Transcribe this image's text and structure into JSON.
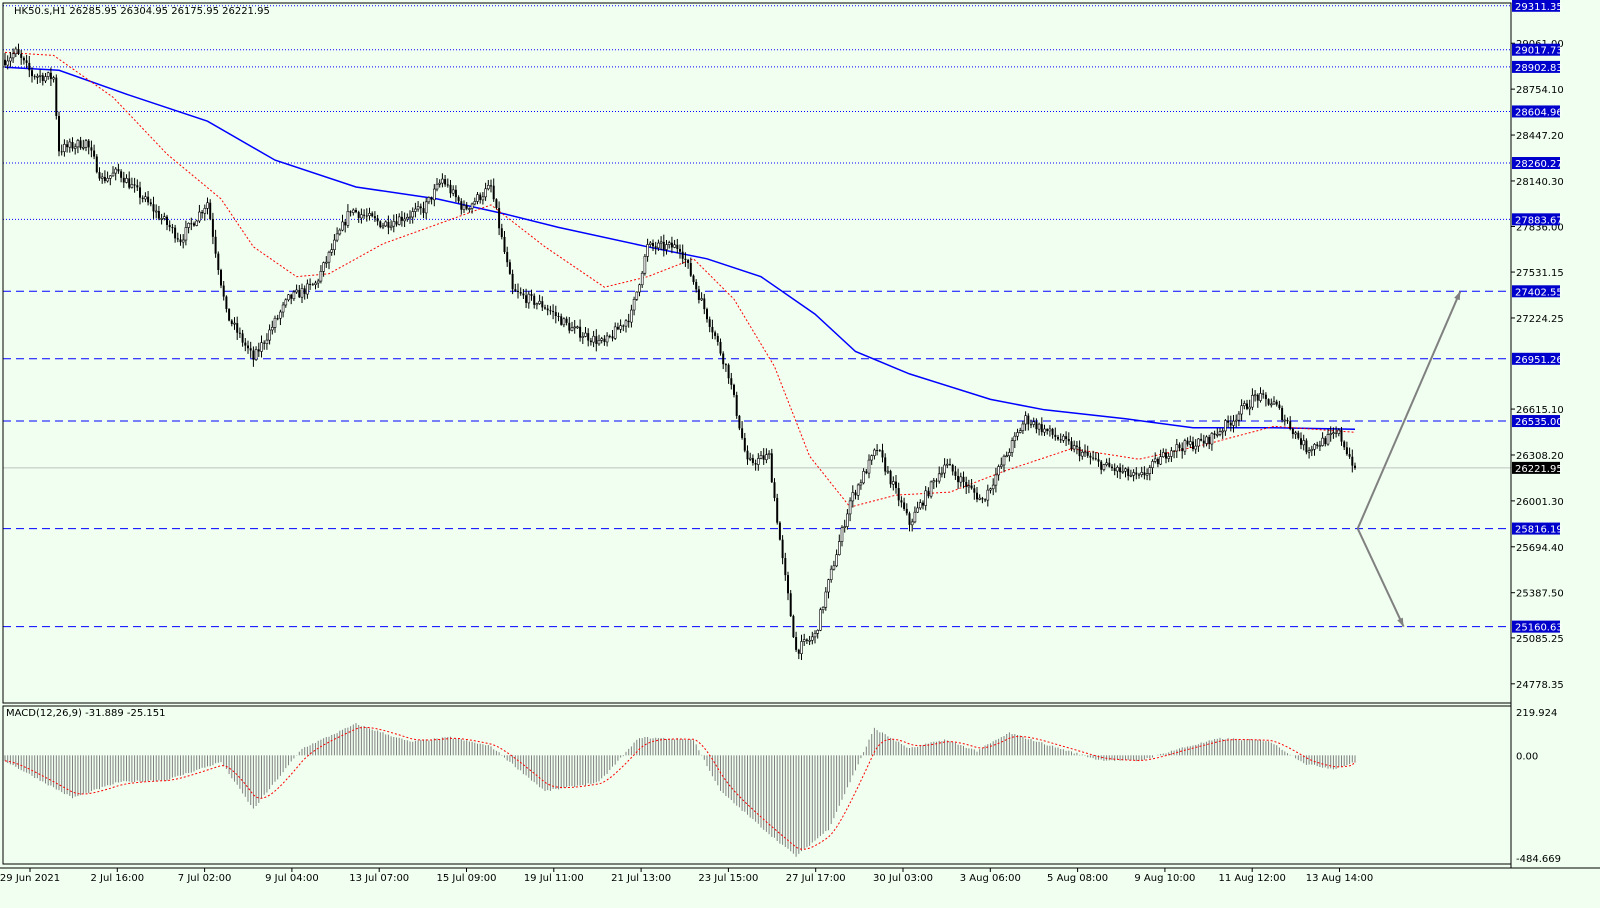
{
  "symbol_header": "HK50.s,H1  26285.95 26304.95 26175.95 26221.95",
  "macd_header": "MACD(12,26,9) -31.889 -25.151",
  "colors": {
    "background": "#f0fff0",
    "axis": "#000000",
    "candle_up": "#000000",
    "candle_down": "#000000",
    "sma_fast": "#ff0000",
    "sma_slow": "#0000ff",
    "level_line": "#0000ff",
    "level_label_bg": "#0000cd",
    "price_label_bg": "#000000",
    "projection_arrow": "#808080",
    "macd_hist": "#808080",
    "macd_signal": "#ff0000"
  },
  "chart_data": [
    {
      "type": "candlestick",
      "title": "HK50.s,H1",
      "timeframe": "H1",
      "last_values": {
        "open": 26285.95,
        "high": 26304.95,
        "low": 26175.95,
        "close": 26221.95
      },
      "current_price_label": "26221.95",
      "ylim": [
        24650,
        29330
      ],
      "y_ticks": [
        "29061.00",
        "28754.10",
        "28447.20",
        "28140.30",
        "27836.00",
        "27531.15",
        "27224.25",
        "26615.10",
        "26308.20",
        "26001.30",
        "25694.40",
        "25387.50",
        "25085.25",
        "24778.35"
      ],
      "x_ticks": [
        "29 Jun 2021",
        "2 Jul 16:00",
        "7 Jul 02:00",
        "9 Jul 04:00",
        "13 Jul 07:00",
        "15 Jul 09:00",
        "19 Jul 11:00",
        "21 Jul 13:00",
        "23 Jul 15:00",
        "27 Jul 17:00",
        "30 Jul 03:00",
        "3 Aug 06:00",
        "5 Aug 08:00",
        "9 Aug 10:00",
        "11 Aug 12:00",
        "13 Aug 14:00"
      ],
      "horizontal_levels": [
        {
          "price": 29311.35,
          "label": "29311.35",
          "style": "dotted"
        },
        {
          "price": 29017.73,
          "label": "29017.73",
          "style": "dotted"
        },
        {
          "price": 28902.83,
          "label": "28902.83",
          "style": "dotted"
        },
        {
          "price": 28604.96,
          "label": "28604.96",
          "style": "dotted"
        },
        {
          "price": 28260.27,
          "label": "28260.27",
          "style": "dotted"
        },
        {
          "price": 27883.67,
          "label": "27883.67",
          "style": "dotted"
        },
        {
          "price": 27402.55,
          "label": "27402.55",
          "style": "dashed"
        },
        {
          "price": 26951.26,
          "label": "26951.26",
          "style": "dashed"
        },
        {
          "price": 26535.0,
          "label": "26535.00",
          "style": "dashed"
        },
        {
          "price": 25816.19,
          "label": "25816.19",
          "style": "dashed"
        },
        {
          "price": 25160.63,
          "label": "25160.63",
          "style": "dashed"
        }
      ],
      "price_path_keypoints": [
        {
          "bar": 0,
          "price": 28950
        },
        {
          "bar": 4,
          "price": 29000
        },
        {
          "bar": 10,
          "price": 28850
        },
        {
          "bar": 18,
          "price": 28830
        },
        {
          "bar": 20,
          "price": 28350
        },
        {
          "bar": 30,
          "price": 28400
        },
        {
          "bar": 36,
          "price": 28150
        },
        {
          "bar": 42,
          "price": 28200
        },
        {
          "bar": 55,
          "price": 27950
        },
        {
          "bar": 65,
          "price": 27750
        },
        {
          "bar": 75,
          "price": 28000
        },
        {
          "bar": 82,
          "price": 27250
        },
        {
          "bar": 92,
          "price": 26950
        },
        {
          "bar": 105,
          "price": 27350
        },
        {
          "bar": 115,
          "price": 27450
        },
        {
          "bar": 128,
          "price": 27950
        },
        {
          "bar": 140,
          "price": 27850
        },
        {
          "bar": 155,
          "price": 27950
        },
        {
          "bar": 162,
          "price": 28150
        },
        {
          "bar": 170,
          "price": 27950
        },
        {
          "bar": 180,
          "price": 28100
        },
        {
          "bar": 188,
          "price": 27400
        },
        {
          "bar": 200,
          "price": 27300
        },
        {
          "bar": 210,
          "price": 27150
        },
        {
          "bar": 222,
          "price": 27050
        },
        {
          "bar": 232,
          "price": 27250
        },
        {
          "bar": 238,
          "price": 27700
        },
        {
          "bar": 250,
          "price": 27700
        },
        {
          "bar": 262,
          "price": 27150
        },
        {
          "bar": 268,
          "price": 26850
        },
        {
          "bar": 275,
          "price": 26250
        },
        {
          "bar": 283,
          "price": 26300
        },
        {
          "bar": 288,
          "price": 25600
        },
        {
          "bar": 293,
          "price": 25000
        },
        {
          "bar": 300,
          "price": 25100
        },
        {
          "bar": 305,
          "price": 25450
        },
        {
          "bar": 313,
          "price": 26000
        },
        {
          "bar": 323,
          "price": 26350
        },
        {
          "bar": 335,
          "price": 25850
        },
        {
          "bar": 348,
          "price": 26250
        },
        {
          "bar": 362,
          "price": 26000
        },
        {
          "bar": 378,
          "price": 26550
        },
        {
          "bar": 392,
          "price": 26400
        },
        {
          "bar": 405,
          "price": 26250
        },
        {
          "bar": 420,
          "price": 26150
        },
        {
          "bar": 432,
          "price": 26350
        },
        {
          "bar": 445,
          "price": 26400
        },
        {
          "bar": 455,
          "price": 26550
        },
        {
          "bar": 463,
          "price": 26700
        },
        {
          "bar": 470,
          "price": 26650
        },
        {
          "bar": 482,
          "price": 26350
        },
        {
          "bar": 494,
          "price": 26450
        },
        {
          "bar": 500,
          "price": 26221.95
        }
      ],
      "bar_count": 501,
      "indicators": [
        {
          "name": "SMA slow",
          "color": "#0000ff",
          "points": [
            {
              "bar": 0,
              "price": 28900
            },
            {
              "bar": 20,
              "price": 28880
            },
            {
              "bar": 45,
              "price": 28720
            },
            {
              "bar": 75,
              "price": 28540
            },
            {
              "bar": 100,
              "price": 28280
            },
            {
              "bar": 130,
              "price": 28100
            },
            {
              "bar": 160,
              "price": 28020
            },
            {
              "bar": 185,
              "price": 27920
            },
            {
              "bar": 205,
              "price": 27830
            },
            {
              "bar": 238,
              "price": 27700
            },
            {
              "bar": 260,
              "price": 27620
            },
            {
              "bar": 280,
              "price": 27500
            },
            {
              "bar": 300,
              "price": 27250
            },
            {
              "bar": 315,
              "price": 27000
            },
            {
              "bar": 335,
              "price": 26850
            },
            {
              "bar": 365,
              "price": 26680
            },
            {
              "bar": 385,
              "price": 26610
            },
            {
              "bar": 415,
              "price": 26550
            },
            {
              "bar": 440,
              "price": 26490
            },
            {
              "bar": 470,
              "price": 26490
            },
            {
              "bar": 500,
              "price": 26480
            }
          ]
        },
        {
          "name": "SMA fast",
          "color": "#ff0000",
          "dash": "2,2",
          "points": [
            {
              "bar": 0,
              "price": 29000
            },
            {
              "bar": 18,
              "price": 28980
            },
            {
              "bar": 40,
              "price": 28700
            },
            {
              "bar": 60,
              "price": 28320
            },
            {
              "bar": 80,
              "price": 28020
            },
            {
              "bar": 92,
              "price": 27700
            },
            {
              "bar": 108,
              "price": 27500
            },
            {
              "bar": 120,
              "price": 27520
            },
            {
              "bar": 140,
              "price": 27720
            },
            {
              "bar": 160,
              "price": 27850
            },
            {
              "bar": 180,
              "price": 27980
            },
            {
              "bar": 200,
              "price": 27700
            },
            {
              "bar": 222,
              "price": 27430
            },
            {
              "bar": 238,
              "price": 27500
            },
            {
              "bar": 255,
              "price": 27620
            },
            {
              "bar": 270,
              "price": 27350
            },
            {
              "bar": 285,
              "price": 26900
            },
            {
              "bar": 298,
              "price": 26300
            },
            {
              "bar": 313,
              "price": 25960
            },
            {
              "bar": 330,
              "price": 26040
            },
            {
              "bar": 350,
              "price": 26060
            },
            {
              "bar": 370,
              "price": 26200
            },
            {
              "bar": 395,
              "price": 26350
            },
            {
              "bar": 420,
              "price": 26280
            },
            {
              "bar": 445,
              "price": 26380
            },
            {
              "bar": 470,
              "price": 26500
            },
            {
              "bar": 500,
              "price": 26460
            }
          ]
        }
      ],
      "projections": [
        {
          "from_bar": 501,
          "from_price": 25816.19,
          "to_bar": 539,
          "to_price": 27402.55
        },
        {
          "from_bar": 501,
          "from_price": 25816.19,
          "to_bar": 518,
          "to_price": 25160.63
        }
      ]
    },
    {
      "type": "bar",
      "title": "MACD(12,26,9)",
      "macd": -31.889,
      "signal": -25.151,
      "ylim": [
        -484.669,
        219.924
      ],
      "y_ticks": [
        "219.924",
        "0.00",
        "-484.669"
      ],
      "macd_keypoints": [
        {
          "bar": 0,
          "value": -25
        },
        {
          "bar": 25,
          "value": -190
        },
        {
          "bar": 42,
          "value": -120
        },
        {
          "bar": 60,
          "value": -110
        },
        {
          "bar": 80,
          "value": -30
        },
        {
          "bar": 92,
          "value": -240
        },
        {
          "bar": 110,
          "value": 30
        },
        {
          "bar": 130,
          "value": 140
        },
        {
          "bar": 150,
          "value": 60
        },
        {
          "bar": 165,
          "value": 80
        },
        {
          "bar": 180,
          "value": 40
        },
        {
          "bar": 200,
          "value": -160
        },
        {
          "bar": 220,
          "value": -120
        },
        {
          "bar": 235,
          "value": 80
        },
        {
          "bar": 255,
          "value": 70
        },
        {
          "bar": 265,
          "value": -160
        },
        {
          "bar": 282,
          "value": -340
        },
        {
          "bar": 293,
          "value": -450
        },
        {
          "bar": 305,
          "value": -330
        },
        {
          "bar": 322,
          "value": 120
        },
        {
          "bar": 335,
          "value": 30
        },
        {
          "bar": 348,
          "value": 70
        },
        {
          "bar": 360,
          "value": 20
        },
        {
          "bar": 372,
          "value": 100
        },
        {
          "bar": 388,
          "value": 40
        },
        {
          "bar": 405,
          "value": -20
        },
        {
          "bar": 420,
          "value": -25
        },
        {
          "bar": 435,
          "value": 30
        },
        {
          "bar": 450,
          "value": 75
        },
        {
          "bar": 468,
          "value": 65
        },
        {
          "bar": 482,
          "value": -40
        },
        {
          "bar": 492,
          "value": -60
        },
        {
          "bar": 500,
          "value": -31.889
        }
      ]
    }
  ]
}
